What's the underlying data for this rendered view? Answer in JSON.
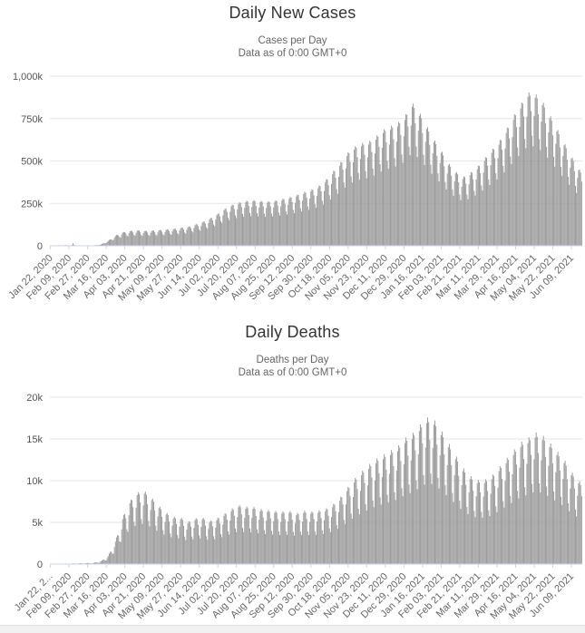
{
  "page": {
    "background": "#ffffff"
  },
  "footer_band": {
    "color": "#f1f1f1",
    "border_color": "#e0e0e0"
  },
  "chart_data": [
    {
      "type": "bar",
      "title": "Daily New Cases",
      "subtitle": "Cases per Day",
      "data_note": "Data as of 0:00 GMT+0",
      "ylim": [
        0,
        1000000
      ],
      "y_ticks": [
        {
          "value": 1000000,
          "label": "1,000k"
        },
        {
          "value": 750000,
          "label": "750k"
        },
        {
          "value": 500000,
          "label": "500k"
        },
        {
          "value": 250000,
          "label": "250k"
        },
        {
          "value": 0,
          "label": "0"
        }
      ],
      "x_tick_days": [
        0,
        18,
        36,
        54,
        72,
        90,
        108,
        126,
        144,
        162,
        180,
        198,
        216,
        234,
        252,
        270,
        288,
        306,
        324,
        342,
        360,
        378,
        396,
        414,
        432,
        450,
        468,
        486,
        504
      ],
      "x_tick_labels": [
        "Jan 22, 2020",
        "Feb 09, 2020",
        "Feb 27, 2020",
        "Mar 16, 2020",
        "Apr 03, 2020",
        "Apr 21, 2020",
        "May 09, 2020",
        "May 27, 2020",
        "Jun 14, 2020",
        "Jul 02, 2020",
        "Jul 20, 2020",
        "Aug 07, 2020",
        "Aug 25, 2020",
        "Sep 12, 2020",
        "Sep 30, 2020",
        "Oct 18, 2020",
        "Nov 05, 2020",
        "Nov 23, 2020",
        "Dec 11, 2020",
        "Dec 29, 2020",
        "Jan 16, 2021",
        "Feb 03, 2021",
        "Feb 21, 2021",
        "Mar 11, 2021",
        "Mar 29, 2021",
        "Apr 16, 2021",
        "May 04, 2021",
        "May 22, 2021",
        "Jun 09, 2021"
      ],
      "n_days": 515,
      "weekly_pattern": [
        0.97,
        1.0,
        0.98,
        0.88,
        0.72,
        0.65,
        0.85
      ],
      "envelope": [
        [
          0,
          1000
        ],
        [
          7,
          3000
        ],
        [
          14,
          4000
        ],
        [
          20,
          3000
        ],
        [
          21,
          5000
        ],
        [
          22,
          15000
        ],
        [
          23,
          5000
        ],
        [
          28,
          2500
        ],
        [
          42,
          2500
        ],
        [
          49,
          8000
        ],
        [
          56,
          30000
        ],
        [
          63,
          60000
        ],
        [
          70,
          80000
        ],
        [
          77,
          88000
        ],
        [
          84,
          92000
        ],
        [
          91,
          88000
        ],
        [
          98,
          90000
        ],
        [
          105,
          93000
        ],
        [
          112,
          96000
        ],
        [
          119,
          100000
        ],
        [
          126,
          106000
        ],
        [
          133,
          112000
        ],
        [
          140,
          125000
        ],
        [
          147,
          140000
        ],
        [
          154,
          160000
        ],
        [
          161,
          185000
        ],
        [
          168,
          215000
        ],
        [
          175,
          240000
        ],
        [
          182,
          255000
        ],
        [
          189,
          265000
        ],
        [
          196,
          270000
        ],
        [
          203,
          265000
        ],
        [
          210,
          262000
        ],
        [
          217,
          266000
        ],
        [
          224,
          276000
        ],
        [
          231,
          286000
        ],
        [
          238,
          300000
        ],
        [
          245,
          315000
        ],
        [
          252,
          330000
        ],
        [
          259,
          350000
        ],
        [
          266,
          385000
        ],
        [
          273,
          435000
        ],
        [
          280,
          485000
        ],
        [
          287,
          545000
        ],
        [
          294,
          585000
        ],
        [
          301,
          605000
        ],
        [
          308,
          615000
        ],
        [
          315,
          645000
        ],
        [
          322,
          685000
        ],
        [
          329,
          705000
        ],
        [
          336,
          725000
        ],
        [
          343,
          765000
        ],
        [
          350,
          845000
        ],
        [
          357,
          790000
        ],
        [
          364,
          710000
        ],
        [
          371,
          630000
        ],
        [
          378,
          565000
        ],
        [
          385,
          490000
        ],
        [
          392,
          440000
        ],
        [
          399,
          405000
        ],
        [
          406,
          430000
        ],
        [
          413,
          465000
        ],
        [
          420,
          515000
        ],
        [
          427,
          565000
        ],
        [
          434,
          615000
        ],
        [
          441,
          685000
        ],
        [
          448,
          765000
        ],
        [
          455,
          835000
        ],
        [
          462,
          905000
        ],
        [
          469,
          900000
        ],
        [
          476,
          855000
        ],
        [
          483,
          775000
        ],
        [
          490,
          695000
        ],
        [
          497,
          610000
        ],
        [
          504,
          530000
        ],
        [
          511,
          460000
        ],
        [
          514,
          430000
        ]
      ],
      "colors": {
        "bar": "#9a9a9a",
        "grid": "#e6e6e6",
        "axis_line": "#ccd6eb",
        "y_label": "#555555",
        "x_label": "#666666"
      }
    },
    {
      "type": "bar",
      "title": "Daily Deaths",
      "subtitle": "Deaths per Day",
      "data_note": "Data as of 0:00 GMT+0",
      "ylim": [
        0,
        20000
      ],
      "y_ticks": [
        {
          "value": 20000,
          "label": "20k"
        },
        {
          "value": 15000,
          "label": "15k"
        },
        {
          "value": 10000,
          "label": "10k"
        },
        {
          "value": 5000,
          "label": "5k"
        },
        {
          "value": 0,
          "label": "0"
        }
      ],
      "x_tick_days": [
        0,
        18,
        36,
        54,
        72,
        90,
        108,
        126,
        144,
        162,
        180,
        198,
        216,
        234,
        252,
        270,
        288,
        306,
        324,
        342,
        360,
        378,
        396,
        414,
        432,
        450,
        468,
        486,
        504
      ],
      "x_tick_labels": [
        "Jan 22, 2...",
        "Feb 09, 2020",
        "Feb 27, 2020",
        "Mar 16, 2020",
        "Apr 03, 2020",
        "Apr 21, 2020",
        "May 09, 2020",
        "May 27, 2020",
        "Jun 14, 2020",
        "Jul 02, 2020",
        "Jul 20, 2020",
        "Aug 07, 2020",
        "Aug 25, 2020",
        "Sep 12, 2020",
        "Sep 30, 2020",
        "Oct 18, 2020",
        "Nov 05, 2020",
        "Nov 23, 2020",
        "Dec 11, 2020",
        "Dec 29, 2020",
        "Jan 16, 2021",
        "Feb 03, 2021",
        "Feb 21, 2021",
        "Mar 11, 2021",
        "Mar 29, 2021",
        "Apr 16, 2021",
        "May 04, 2021",
        "May 22, 2021",
        "Jun 09, 2021"
      ],
      "n_days": 515,
      "weekly_pattern": [
        0.96,
        1.0,
        0.97,
        0.85,
        0.62,
        0.55,
        0.8
      ],
      "envelope": [
        [
          0,
          20
        ],
        [
          28,
          100
        ],
        [
          42,
          150
        ],
        [
          49,
          350
        ],
        [
          56,
          1000
        ],
        [
          63,
          2800
        ],
        [
          70,
          5600
        ],
        [
          77,
          7600
        ],
        [
          84,
          8600
        ],
        [
          91,
          8800
        ],
        [
          98,
          8000
        ],
        [
          105,
          7000
        ],
        [
          112,
          6200
        ],
        [
          119,
          5700
        ],
        [
          126,
          5600
        ],
        [
          133,
          5100
        ],
        [
          140,
          5500
        ],
        [
          147,
          5600
        ],
        [
          154,
          5200
        ],
        [
          161,
          5500
        ],
        [
          168,
          6000
        ],
        [
          175,
          6600
        ],
        [
          182,
          7100
        ],
        [
          189,
          6900
        ],
        [
          196,
          6900
        ],
        [
          203,
          6600
        ],
        [
          210,
          6500
        ],
        [
          217,
          6400
        ],
        [
          224,
          6300
        ],
        [
          231,
          6400
        ],
        [
          238,
          6100
        ],
        [
          245,
          6400
        ],
        [
          252,
          6300
        ],
        [
          259,
          6400
        ],
        [
          266,
          6600
        ],
        [
          273,
          7100
        ],
        [
          280,
          7900
        ],
        [
          287,
          9100
        ],
        [
          294,
          10200
        ],
        [
          301,
          11100
        ],
        [
          308,
          11900
        ],
        [
          315,
          12600
        ],
        [
          322,
          13100
        ],
        [
          329,
          13600
        ],
        [
          336,
          14100
        ],
        [
          343,
          15100
        ],
        [
          350,
          15600
        ],
        [
          357,
          16600
        ],
        [
          364,
          17600
        ],
        [
          371,
          17400
        ],
        [
          378,
          16100
        ],
        [
          385,
          14600
        ],
        [
          392,
          13100
        ],
        [
          399,
          11600
        ],
        [
          406,
          10600
        ],
        [
          413,
          10100
        ],
        [
          420,
          10100
        ],
        [
          427,
          10600
        ],
        [
          434,
          11600
        ],
        [
          441,
          12600
        ],
        [
          448,
          13600
        ],
        [
          455,
          14600
        ],
        [
          462,
          15100
        ],
        [
          469,
          15800
        ],
        [
          476,
          15500
        ],
        [
          483,
          14600
        ],
        [
          490,
          13600
        ],
        [
          497,
          12600
        ],
        [
          504,
          11100
        ],
        [
          511,
          10100
        ],
        [
          514,
          9600
        ]
      ],
      "colors": {
        "bar": "#9a9a9a",
        "grid": "#e6e6e6",
        "axis_line": "#ccd6eb",
        "y_label": "#555555",
        "x_label": "#666666"
      }
    }
  ]
}
